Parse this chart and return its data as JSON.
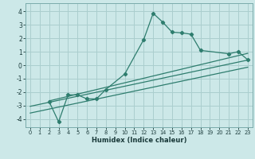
{
  "xlabel": "Humidex (Indice chaleur)",
  "bg_color": "#cce8e8",
  "line_color": "#2e7d6e",
  "grid_color": "#aacece",
  "xlim": [
    -0.5,
    23.5
  ],
  "ylim": [
    -4.6,
    4.6
  ],
  "xticks": [
    0,
    1,
    2,
    3,
    4,
    5,
    6,
    7,
    8,
    9,
    10,
    11,
    12,
    13,
    14,
    15,
    16,
    17,
    18,
    19,
    20,
    21,
    22,
    23
  ],
  "yticks": [
    -4,
    -3,
    -2,
    -1,
    0,
    1,
    2,
    3,
    4
  ],
  "main_x": [
    2,
    3,
    4,
    5,
    6,
    7,
    8,
    10,
    12,
    13,
    14,
    15,
    16,
    17,
    18,
    21,
    22,
    23
  ],
  "main_y": [
    -2.7,
    -4.2,
    -2.2,
    -2.2,
    -2.5,
    -2.5,
    -1.8,
    -0.65,
    1.9,
    3.85,
    3.2,
    2.45,
    2.4,
    2.3,
    1.1,
    0.85,
    1.0,
    0.4
  ],
  "line1_x": [
    0,
    23
  ],
  "line1_y": [
    -3.05,
    0.38
  ],
  "line2_x": [
    0,
    23
  ],
  "line2_y": [
    -3.55,
    -0.15
  ],
  "line3_x": [
    2,
    23
  ],
  "line3_y": [
    -2.65,
    0.88
  ]
}
